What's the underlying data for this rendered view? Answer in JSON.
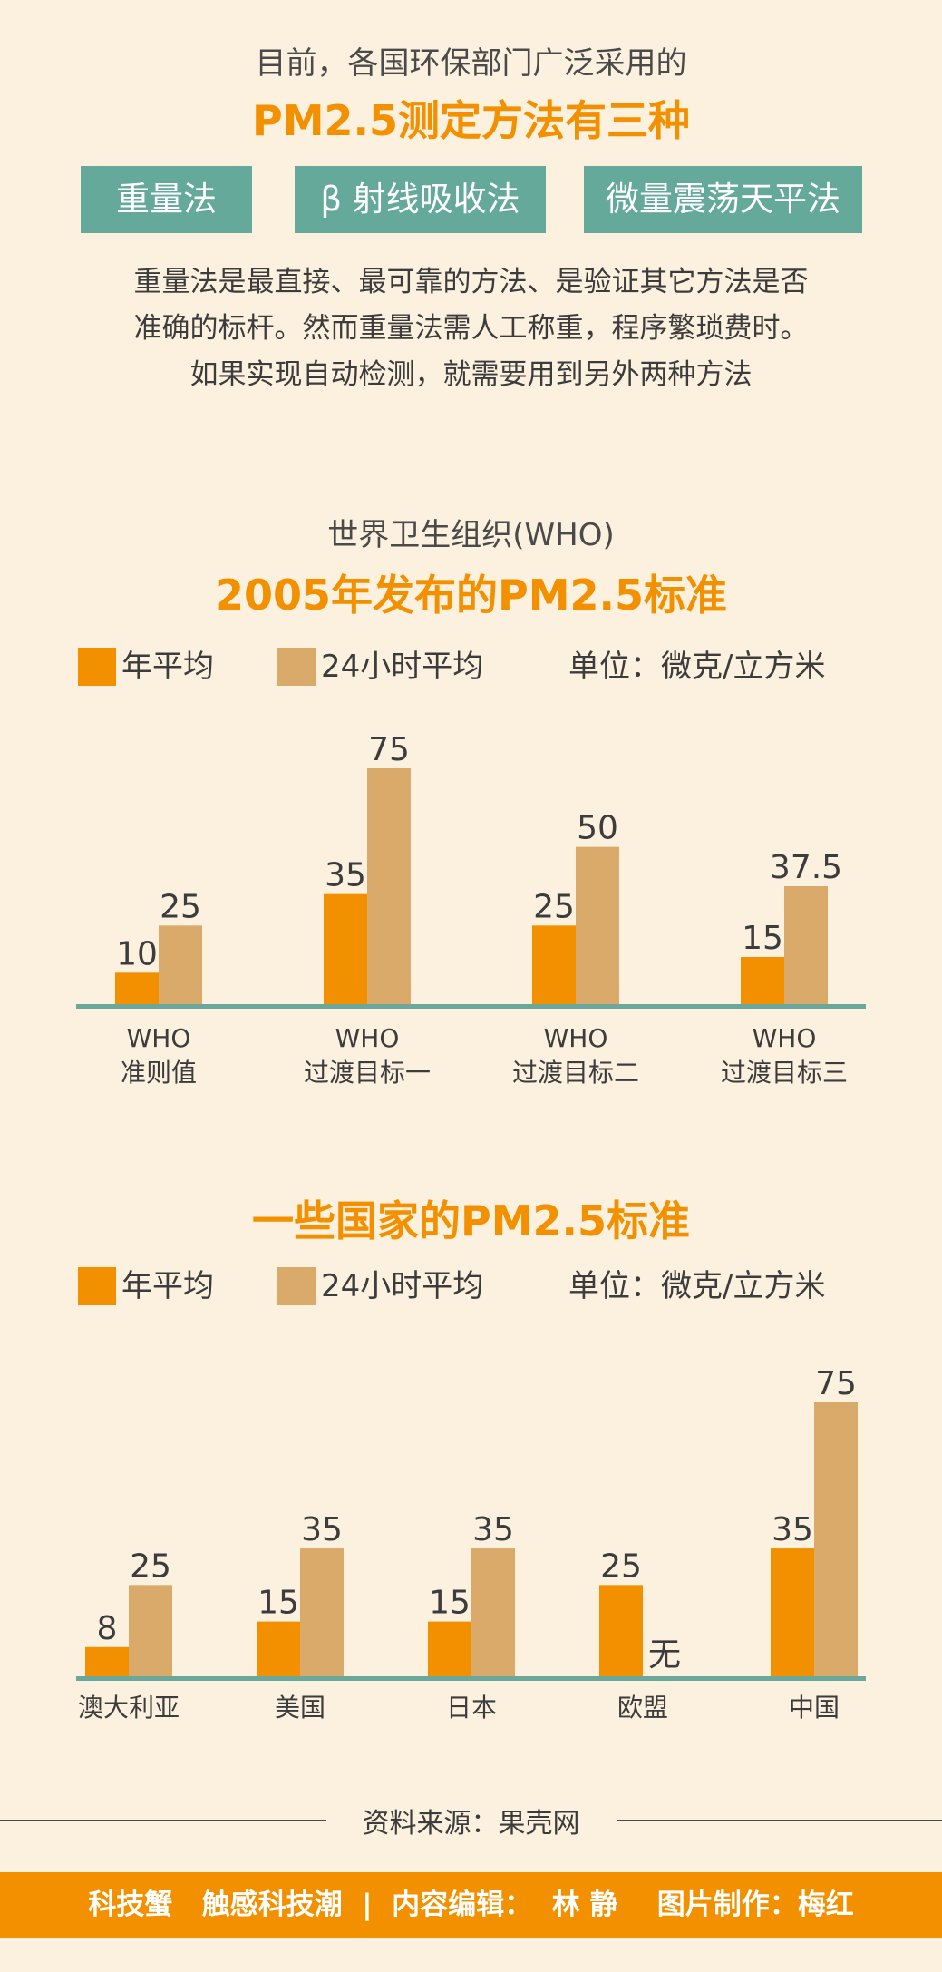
{
  "header": {
    "subtitle": "目前，各国环保部门广泛采用的",
    "title": "PM2.5测定方法有三种",
    "methods": [
      "重量法",
      "β 射线吸收法",
      "微量震荡天平法"
    ],
    "paragraph": [
      "重量法是最直接、最可靠的方法、是验证其它方法是否",
      "准确的标杆。然而重量法需人工称重，程序繁琐费时。",
      "如果实现自动检测，就需要用到另外两种方法"
    ]
  },
  "colors": {
    "annual": "#f29000",
    "daily": "#d9aa6a",
    "baseline": "#6aa89c",
    "background": "#fcf0df",
    "accent": "#f29000"
  },
  "chart1_header": {
    "subtitle": "世界卫生组织(WHO)",
    "title": "2005年发布的PM2.5标准",
    "legend_annual": "年平均",
    "legend_daily": "24小时平均",
    "unit": "单位：微克/立方米"
  },
  "chart2_header": {
    "title": "一些国家的PM2.5标准",
    "legend_annual": "年平均",
    "legend_daily": "24小时平均",
    "unit": "单位：微克/立方米"
  },
  "chart_data": [
    {
      "type": "bar",
      "title": "2005年发布的PM2.5标准",
      "categories": [
        [
          "WHO",
          "准则值"
        ],
        [
          "WHO",
          "过渡目标一"
        ],
        [
          "WHO",
          "过渡目标二"
        ],
        [
          "WHO",
          "过渡目标三"
        ]
      ],
      "series": [
        {
          "name": "年平均",
          "values": [
            10,
            35,
            25,
            15
          ],
          "labels": [
            "10",
            "35",
            "25",
            "15"
          ]
        },
        {
          "name": "24小时平均",
          "values": [
            25,
            75,
            50,
            37.5
          ],
          "labels": [
            "25",
            "75",
            "50",
            "37.5"
          ]
        }
      ],
      "unit": "单位：微克/立方米",
      "ylim": [
        0,
        75
      ],
      "grid": false,
      "legend": "top"
    },
    {
      "type": "bar",
      "title": "一些国家的PM2.5标准",
      "categories": [
        [
          "澳大利亚"
        ],
        [
          "美国"
        ],
        [
          "日本"
        ],
        [
          "欧盟"
        ],
        [
          "中国"
        ]
      ],
      "series": [
        {
          "name": "年平均",
          "values": [
            8,
            15,
            15,
            25,
            35
          ],
          "labels": [
            "8",
            "15",
            "15",
            "25",
            "35"
          ]
        },
        {
          "name": "24小时平均",
          "values": [
            25,
            35,
            35,
            null,
            75
          ],
          "labels": [
            "25",
            "35",
            "35",
            "无",
            "75"
          ]
        }
      ],
      "unit": "单位：微克/立方米",
      "ylim": [
        0,
        75
      ],
      "grid": false,
      "legend": "top"
    }
  ],
  "source": "资料来源：果壳网",
  "footer": "科技蟹   触感科技潮  |  内容编辑：  林 静    图片制作：梅红"
}
